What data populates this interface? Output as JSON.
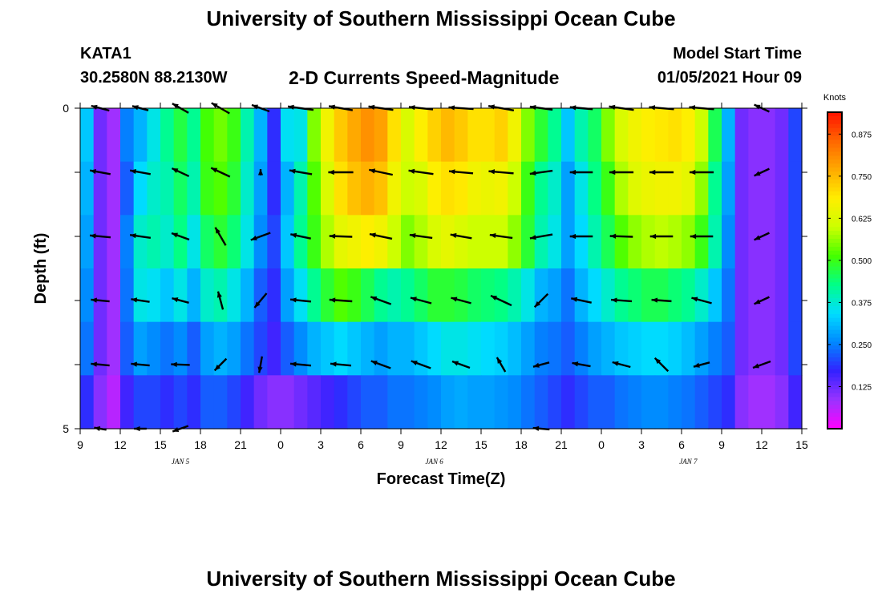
{
  "page": {
    "title": "University of Southern Mississippi Ocean Cube",
    "footer_title": "University of Southern Mississippi Ocean Cube",
    "station_id": "KATA1",
    "station_location": "30.2580N 88.2130W",
    "start_label": "Model Start Time",
    "start_value": "01/05/2021 Hour 09"
  },
  "chart_data": {
    "type": "heatmap",
    "title": "2-D Currents Speed-Magnitude",
    "xlabel": "Forecast Time(Z)",
    "ylabel": "Depth (ft)",
    "x_ticks": [
      "9",
      "12",
      "15",
      "18",
      "21",
      "0",
      "3",
      "6",
      "9",
      "12",
      "15",
      "18",
      "21",
      "0",
      "3",
      "6",
      "9",
      "12",
      "15"
    ],
    "x_start_hour": 9,
    "x_range_hours": [
      0,
      54
    ],
    "date_labels": [
      {
        "text": "JAN 5",
        "hour": 7.5
      },
      {
        "text": "JAN 6",
        "hour": 26.5
      },
      {
        "text": "JAN 7",
        "hour": 45.5
      }
    ],
    "y_ticks": [
      "0",
      "5"
    ],
    "ylim": [
      0,
      5
    ],
    "depth_layers": [
      0,
      1,
      2,
      3,
      4,
      5
    ],
    "colorbar": {
      "label": "Knots",
      "ticks": [
        "0.875",
        "0.750",
        "0.625",
        "0.500",
        "0.375",
        "0.250",
        "0.125"
      ],
      "range": [
        0,
        0.94
      ],
      "colors": [
        "#ff00ff",
        "#9933ff",
        "#3322ff",
        "#0088ff",
        "#00ddff",
        "#00ff88",
        "#44ff00",
        "#ccff00",
        "#ffee00",
        "#ffaa00",
        "#ff6600",
        "#ff1100"
      ]
    },
    "speed_hours": [
      0,
      1,
      2,
      3,
      4,
      5,
      6,
      7,
      8,
      9,
      10,
      11,
      12,
      13,
      14,
      15,
      16,
      17,
      18,
      19,
      20,
      21,
      22,
      23,
      24,
      25,
      26,
      27,
      28,
      29,
      30,
      31,
      32,
      33,
      34,
      35,
      36,
      37,
      38,
      39,
      40,
      41,
      42,
      43,
      44,
      45,
      46,
      47,
      48,
      49,
      50,
      51,
      52,
      53,
      54
    ],
    "speed_knots": [
      [
        0.32,
        0.12,
        0.08,
        0.25,
        0.3,
        0.36,
        0.42,
        0.47,
        0.42,
        0.51,
        0.54,
        0.5,
        0.4,
        0.3,
        0.18,
        0.35,
        0.36,
        0.55,
        0.66,
        0.73,
        0.77,
        0.8,
        0.78,
        0.7,
        0.62,
        0.68,
        0.72,
        0.75,
        0.73,
        0.7,
        0.7,
        0.72,
        0.66,
        0.55,
        0.48,
        0.42,
        0.32,
        0.4,
        0.45,
        0.55,
        0.62,
        0.66,
        0.68,
        0.69,
        0.7,
        0.68,
        0.6,
        0.46,
        0.3,
        0.12,
        0.1,
        0.1,
        0.12,
        0.2,
        0.25
      ],
      [
        0.3,
        0.12,
        0.08,
        0.22,
        0.34,
        0.38,
        0.4,
        0.45,
        0.4,
        0.5,
        0.52,
        0.48,
        0.38,
        0.28,
        0.18,
        0.3,
        0.4,
        0.52,
        0.62,
        0.7,
        0.74,
        0.76,
        0.74,
        0.66,
        0.6,
        0.62,
        0.68,
        0.7,
        0.69,
        0.66,
        0.65,
        0.66,
        0.6,
        0.5,
        0.42,
        0.38,
        0.28,
        0.36,
        0.43,
        0.5,
        0.58,
        0.63,
        0.65,
        0.66,
        0.66,
        0.64,
        0.56,
        0.42,
        0.28,
        0.12,
        0.1,
        0.1,
        0.12,
        0.2,
        0.25
      ],
      [
        0.28,
        0.12,
        0.08,
        0.25,
        0.38,
        0.4,
        0.38,
        0.43,
        0.36,
        0.45,
        0.48,
        0.44,
        0.36,
        0.26,
        0.2,
        0.32,
        0.42,
        0.5,
        0.58,
        0.64,
        0.66,
        0.68,
        0.66,
        0.6,
        0.55,
        0.58,
        0.62,
        0.64,
        0.62,
        0.6,
        0.6,
        0.6,
        0.56,
        0.48,
        0.4,
        0.36,
        0.28,
        0.34,
        0.4,
        0.46,
        0.52,
        0.56,
        0.58,
        0.59,
        0.58,
        0.56,
        0.5,
        0.4,
        0.26,
        0.12,
        0.1,
        0.1,
        0.12,
        0.2,
        0.25
      ],
      [
        0.26,
        0.12,
        0.08,
        0.24,
        0.36,
        0.35,
        0.32,
        0.36,
        0.3,
        0.38,
        0.4,
        0.36,
        0.3,
        0.22,
        0.18,
        0.28,
        0.35,
        0.42,
        0.48,
        0.52,
        0.5,
        0.46,
        0.42,
        0.4,
        0.42,
        0.45,
        0.48,
        0.48,
        0.47,
        0.45,
        0.44,
        0.43,
        0.4,
        0.36,
        0.3,
        0.28,
        0.24,
        0.3,
        0.34,
        0.38,
        0.42,
        0.44,
        0.46,
        0.46,
        0.44,
        0.42,
        0.38,
        0.32,
        0.24,
        0.12,
        0.1,
        0.1,
        0.12,
        0.2,
        0.25
      ],
      [
        0.24,
        0.12,
        0.08,
        0.22,
        0.28,
        0.26,
        0.24,
        0.26,
        0.22,
        0.28,
        0.3,
        0.28,
        0.24,
        0.2,
        0.16,
        0.22,
        0.26,
        0.3,
        0.32,
        0.34,
        0.32,
        0.3,
        0.28,
        0.3,
        0.3,
        0.32,
        0.34,
        0.36,
        0.36,
        0.35,
        0.34,
        0.33,
        0.31,
        0.28,
        0.25,
        0.24,
        0.22,
        0.25,
        0.28,
        0.3,
        0.32,
        0.33,
        0.34,
        0.34,
        0.33,
        0.31,
        0.28,
        0.25,
        0.22,
        0.12,
        0.1,
        0.1,
        0.12,
        0.2,
        0.25
      ],
      [
        0.18,
        0.1,
        0.06,
        0.16,
        0.2,
        0.2,
        0.18,
        0.2,
        0.18,
        0.22,
        0.22,
        0.2,
        0.16,
        0.12,
        0.1,
        0.1,
        0.12,
        0.14,
        0.16,
        0.18,
        0.2,
        0.22,
        0.22,
        0.24,
        0.24,
        0.25,
        0.26,
        0.28,
        0.29,
        0.28,
        0.28,
        0.27,
        0.26,
        0.24,
        0.22,
        0.2,
        0.18,
        0.2,
        0.22,
        0.22,
        0.24,
        0.25,
        0.26,
        0.26,
        0.25,
        0.24,
        0.22,
        0.2,
        0.18,
        0.1,
        0.08,
        0.08,
        0.1,
        0.16,
        0.2
      ]
    ],
    "vector_hours": [
      1.5,
      4.5,
      7.5,
      10.5,
      13.5,
      16.5,
      19.5,
      22.5,
      25.5,
      28.5,
      31.5,
      34.5,
      37.5,
      40.5,
      43.5,
      46.5,
      51
    ],
    "vectors": [
      [
        [
          0.45,
          15
        ],
        [
          0.4,
          15
        ],
        [
          0.45,
          30
        ],
        [
          0.5,
          30
        ],
        [
          0.45,
          20
        ],
        [
          0.62,
          8
        ],
        [
          0.58,
          10
        ],
        [
          0.6,
          8
        ],
        [
          0.58,
          6
        ],
        [
          0.6,
          4
        ],
        [
          0.62,
          10
        ],
        [
          0.55,
          8
        ],
        [
          0.55,
          5
        ],
        [
          0.6,
          8
        ],
        [
          0.6,
          5
        ],
        [
          0.6,
          5
        ],
        [
          0.4,
          25
        ]
      ],
      [
        [
          0.5,
          10
        ],
        [
          0.5,
          10
        ],
        [
          0.45,
          25
        ],
        [
          0.5,
          25
        ],
        [
          0.15,
          90
        ],
        [
          0.55,
          10
        ],
        [
          0.6,
          0
        ],
        [
          0.58,
          12
        ],
        [
          0.6,
          8
        ],
        [
          0.58,
          5
        ],
        [
          0.6,
          5
        ],
        [
          0.55,
          -8
        ],
        [
          0.55,
          0
        ],
        [
          0.58,
          0
        ],
        [
          0.58,
          0
        ],
        [
          0.58,
          0
        ],
        [
          0.4,
          -25
        ]
      ],
      [
        [
          0.5,
          5
        ],
        [
          0.5,
          8
        ],
        [
          0.45,
          20
        ],
        [
          0.5,
          60
        ],
        [
          0.5,
          -20
        ],
        [
          0.5,
          12
        ],
        [
          0.55,
          2
        ],
        [
          0.55,
          12
        ],
        [
          0.55,
          8
        ],
        [
          0.52,
          10
        ],
        [
          0.55,
          8
        ],
        [
          0.55,
          -10
        ],
        [
          0.55,
          0
        ],
        [
          0.55,
          2
        ],
        [
          0.55,
          0
        ],
        [
          0.55,
          0
        ],
        [
          0.4,
          -25
        ]
      ],
      [
        [
          0.45,
          5
        ],
        [
          0.45,
          8
        ],
        [
          0.42,
          15
        ],
        [
          0.45,
          75
        ],
        [
          0.45,
          -50
        ],
        [
          0.5,
          6
        ],
        [
          0.55,
          4
        ],
        [
          0.52,
          20
        ],
        [
          0.52,
          15
        ],
        [
          0.5,
          15
        ],
        [
          0.55,
          25
        ],
        [
          0.45,
          -45
        ],
        [
          0.5,
          12
        ],
        [
          0.5,
          4
        ],
        [
          0.48,
          4
        ],
        [
          0.5,
          15
        ],
        [
          0.4,
          -25
        ]
      ],
      [
        [
          0.45,
          5
        ],
        [
          0.45,
          5
        ],
        [
          0.45,
          2
        ],
        [
          0.4,
          -45
        ],
        [
          0.4,
          -80
        ],
        [
          0.5,
          5
        ],
        [
          0.5,
          5
        ],
        [
          0.5,
          20
        ],
        [
          0.5,
          20
        ],
        [
          0.45,
          20
        ],
        [
          0.4,
          60
        ],
        [
          0.4,
          -15
        ],
        [
          0.45,
          10
        ],
        [
          0.45,
          15
        ],
        [
          0.45,
          45
        ],
        [
          0.4,
          -15
        ],
        [
          0.45,
          -20
        ]
      ],
      [
        [
          0.3,
          10
        ],
        [
          0.3,
          0
        ],
        [
          0.4,
          -20
        ],
        [
          0.0,
          0
        ],
        [
          0.0,
          0
        ],
        [
          0.0,
          0
        ],
        [
          0.0,
          0
        ],
        [
          0.0,
          0
        ],
        [
          0.0,
          0
        ],
        [
          0.0,
          0
        ],
        [
          0.0,
          0
        ],
        [
          0.4,
          5
        ],
        [
          0.0,
          0
        ],
        [
          0.0,
          0
        ],
        [
          0.0,
          0
        ],
        [
          0.0,
          0
        ],
        [
          0.0,
          0
        ]
      ]
    ]
  }
}
